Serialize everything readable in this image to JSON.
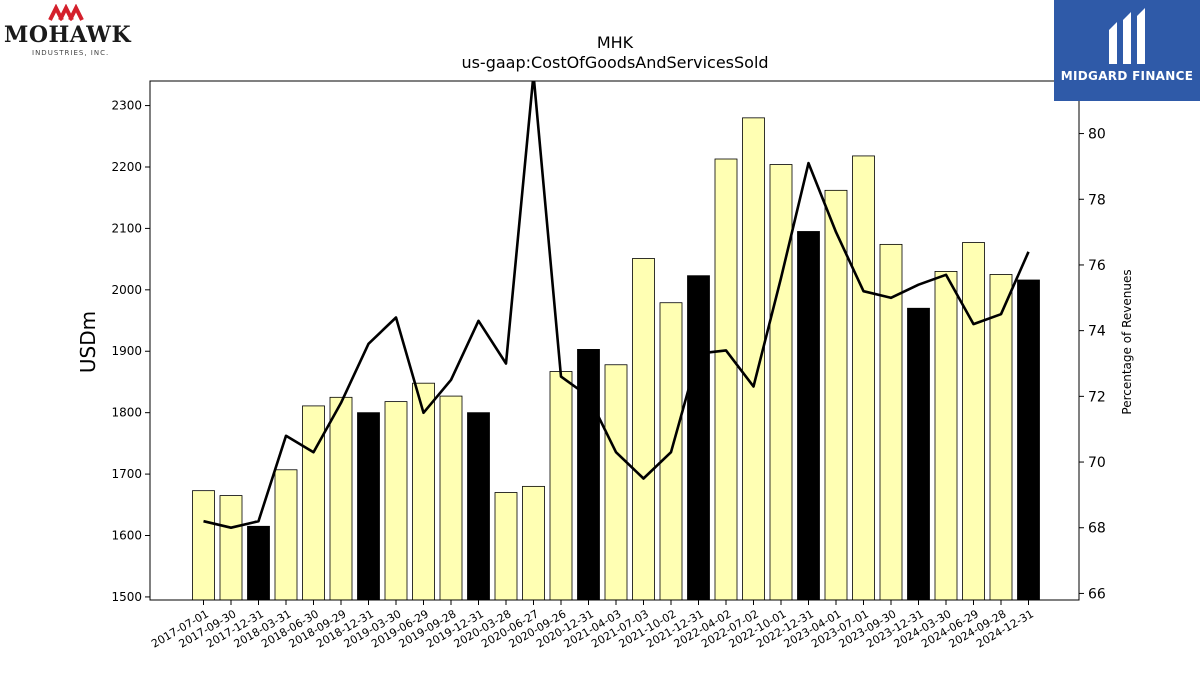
{
  "logos": {
    "left": {
      "wordmark": "MOHAWK",
      "tagline": "INDUSTRIES, INC."
    },
    "right": {
      "wordmark": "MIDGARD FINANCE"
    }
  },
  "colors": {
    "bar_fill": "#ffffb3",
    "bar_highlight": "#000000",
    "bar_stroke": "#000000",
    "line": "#000000",
    "midgard_bg": "#2f5aa8",
    "mohawk_red": "#d4202c"
  },
  "chart_data": {
    "type": "bar",
    "title": "MHK",
    "subtitle": "us-gaap:CostOfGoodsAndServicesSold",
    "ylabel": "USDm",
    "y2label": "Percentage of Revenues",
    "ylim": [
      1495,
      2340
    ],
    "y2lim": [
      65.8,
      81.6
    ],
    "yticks": [
      1500,
      1600,
      1700,
      1800,
      1900,
      2000,
      2100,
      2200,
      2300
    ],
    "y2ticks": [
      66,
      68,
      70,
      72,
      74,
      76,
      78,
      80
    ],
    "categories": [
      "2017-07-01",
      "2017-09-30",
      "2017-12-31",
      "2018-03-31",
      "2018-06-30",
      "2018-09-29",
      "2018-12-31",
      "2019-03-30",
      "2019-06-29",
      "2019-09-28",
      "2019-12-31",
      "2020-03-28",
      "2020-06-27",
      "2020-09-26",
      "2020-12-31",
      "2021-04-03",
      "2021-07-03",
      "2021-10-02",
      "2021-12-31",
      "2022-04-02",
      "2022-07-02",
      "2022-10-01",
      "2022-12-31",
      "2023-04-01",
      "2023-07-01",
      "2023-09-30",
      "2023-12-31",
      "2024-03-30",
      "2024-06-29",
      "2024-09-28",
      "2024-12-31"
    ],
    "series": [
      {
        "type": "bar",
        "values": [
          1673,
          1665,
          1615,
          1707,
          1811,
          1825,
          1800,
          1818,
          1848,
          1827,
          1800,
          1670,
          1680,
          1867,
          1903,
          1878,
          2051,
          1979,
          2023,
          2213,
          2280,
          2204,
          2095,
          2162,
          2218,
          2074,
          1970,
          2030,
          2077,
          2025,
          2016
        ],
        "highlight": [
          false,
          false,
          true,
          false,
          false,
          false,
          true,
          false,
          false,
          false,
          true,
          false,
          false,
          false,
          true,
          false,
          false,
          false,
          true,
          false,
          false,
          false,
          true,
          false,
          false,
          false,
          true,
          false,
          false,
          false,
          true
        ]
      },
      {
        "type": "line",
        "axis": "right",
        "values": [
          68.2,
          68.0,
          68.2,
          70.8,
          70.3,
          71.8,
          73.6,
          74.4,
          71.5,
          72.5,
          74.3,
          73.0,
          81.8,
          72.6,
          72.0,
          70.3,
          69.5,
          70.3,
          73.3,
          73.4,
          72.3,
          75.6,
          79.1,
          77.0,
          75.2,
          75.0,
          75.4,
          75.7,
          74.2,
          74.5,
          76.4
        ]
      }
    ],
    "grid": false
  }
}
